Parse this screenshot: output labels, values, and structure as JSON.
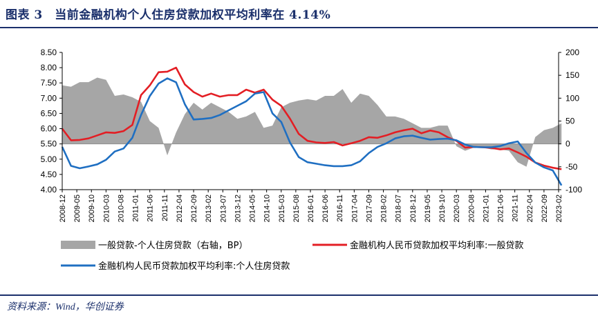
{
  "title": "图表 3　当前金融机构个人住房贷款加权平均利率在 4.14%",
  "source": "资料来源：Wind，华创证券",
  "colors": {
    "area": "#a6a6a6",
    "red": "#e31e24",
    "blue": "#1f6fc2",
    "title": "#1a2f6b"
  },
  "chart_data": {
    "type": "line",
    "categories": [
      "2008-12",
      "2009-05",
      "2009-10",
      "2010-03",
      "2010-08",
      "2011-01",
      "2011-06",
      "2011-11",
      "2012-04",
      "2012-09",
      "2013-02",
      "2013-07",
      "2013-12",
      "2014-05",
      "2014-10",
      "2015-03",
      "2015-08",
      "2016-01",
      "2016-06",
      "2016-11",
      "2017-04",
      "2017-09",
      "2018-02",
      "2018-07",
      "2018-12",
      "2019-05",
      "2019-10",
      "2020-03",
      "2020-08",
      "2021-01",
      "2021-06",
      "2021-11",
      "2022-04",
      "2022-09",
      "2023-02"
    ],
    "x": [
      "2008-12",
      "2009-03",
      "2009-06",
      "2009-09",
      "2009-12",
      "2010-03",
      "2010-06",
      "2010-09",
      "2010-12",
      "2011-03",
      "2011-06",
      "2011-09",
      "2011-12",
      "2012-03",
      "2012-06",
      "2012-09",
      "2012-12",
      "2013-03",
      "2013-06",
      "2013-09",
      "2013-12",
      "2014-03",
      "2014-06",
      "2014-09",
      "2014-12",
      "2015-03",
      "2015-06",
      "2015-09",
      "2015-12",
      "2016-03",
      "2016-06",
      "2016-09",
      "2016-12",
      "2017-03",
      "2017-06",
      "2017-09",
      "2017-12",
      "2018-03",
      "2018-06",
      "2018-09",
      "2018-12",
      "2019-03",
      "2019-06",
      "2019-09",
      "2019-12",
      "2020-03",
      "2020-06",
      "2020-09",
      "2020-12",
      "2021-03",
      "2021-06",
      "2021-09",
      "2021-12",
      "2022-03",
      "2022-06",
      "2022-09",
      "2022-12",
      "2023-03"
    ],
    "series": [
      {
        "name": "一般贷款-个人住房贷款（右轴，BP）",
        "type": "area",
        "axis": "right",
        "values": [
          128,
          125,
          135,
          135,
          145,
          140,
          105,
          108,
          102,
          92,
          50,
          35,
          -25,
          25,
          65,
          90,
          75,
          90,
          80,
          70,
          55,
          60,
          70,
          35,
          40,
          80,
          90,
          95,
          98,
          95,
          105,
          105,
          120,
          90,
          110,
          105,
          85,
          60,
          60,
          55,
          45,
          35,
          35,
          40,
          40,
          -5,
          -15,
          -8,
          -8,
          -12,
          -12,
          -15,
          -40,
          -50,
          15,
          30,
          35,
          45
        ]
      },
      {
        "name": "金融机构人民币贷款加权平均利率:一般贷款",
        "type": "line",
        "axis": "left",
        "values": [
          6.0,
          5.62,
          5.63,
          5.68,
          5.78,
          5.88,
          5.86,
          5.92,
          6.12,
          7.1,
          7.42,
          7.85,
          7.87,
          8.0,
          7.45,
          7.2,
          7.05,
          7.15,
          7.05,
          7.1,
          7.1,
          7.28,
          7.18,
          7.28,
          6.95,
          6.75,
          6.33,
          5.83,
          5.6,
          5.55,
          5.53,
          5.56,
          5.45,
          5.52,
          5.6,
          5.72,
          5.7,
          5.78,
          5.88,
          5.95,
          6.0,
          5.85,
          5.94,
          5.88,
          5.72,
          5.6,
          5.38,
          5.4,
          5.39,
          5.37,
          5.32,
          5.35,
          5.22,
          5.08,
          4.89,
          4.79,
          4.72,
          4.67
        ]
      },
      {
        "name": "金融机构人民币贷款加权平均利率:个人住房贷款",
        "type": "line",
        "axis": "left",
        "values": [
          5.4,
          4.78,
          4.7,
          4.76,
          4.83,
          4.98,
          5.25,
          5.35,
          5.7,
          6.45,
          7.07,
          7.48,
          7.65,
          7.52,
          6.8,
          6.3,
          6.32,
          6.35,
          6.45,
          6.6,
          6.75,
          6.9,
          7.15,
          7.2,
          6.5,
          6.22,
          5.55,
          5.07,
          4.9,
          4.85,
          4.8,
          4.77,
          4.77,
          4.8,
          4.93,
          5.2,
          5.4,
          5.52,
          5.68,
          5.75,
          5.77,
          5.7,
          5.64,
          5.66,
          5.67,
          5.62,
          5.48,
          5.4,
          5.39,
          5.39,
          5.43,
          5.52,
          5.58,
          5.2,
          4.89,
          4.73,
          4.63,
          4.14
        ]
      }
    ],
    "ylim_left": [
      4.0,
      8.5
    ],
    "yticks_left": [
      "4.00",
      "4.50",
      "5.00",
      "5.50",
      "6.00",
      "6.50",
      "7.00",
      "7.50",
      "8.00",
      "8.50"
    ],
    "ylim_right": [
      -100,
      200
    ],
    "yticks_right": [
      "-100",
      "-50",
      "0",
      "50",
      "100",
      "150",
      "200"
    ],
    "legend": [
      {
        "label": "一般贷款-个人住房贷款（右轴，BP）",
        "kind": "area"
      },
      {
        "label": "金融机构人民币贷款加权平均利率:一般贷款",
        "kind": "red"
      },
      {
        "label": "金融机构人民币贷款加权平均利率:个人住房贷款",
        "kind": "blue"
      }
    ]
  }
}
